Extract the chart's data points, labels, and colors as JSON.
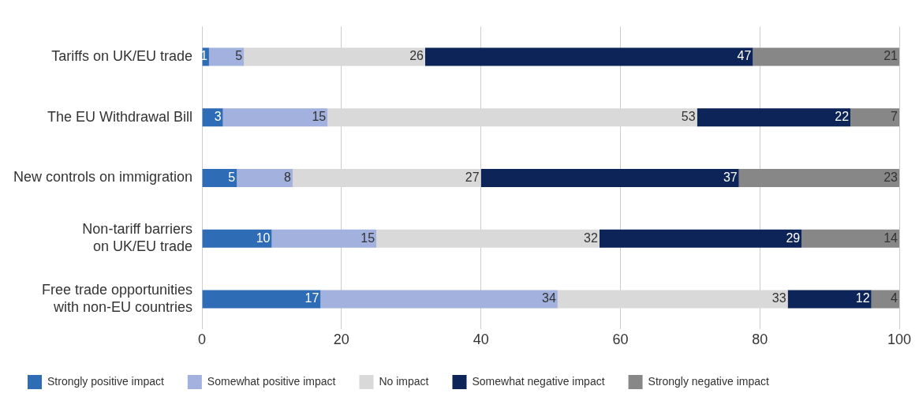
{
  "chart_data": {
    "type": "bar",
    "orientation": "horizontal",
    "stacked": true,
    "categories": [
      "Tariffs on UK/EU trade",
      "The EU Withdrawal Bill",
      "New controls on immigration",
      "Non-tariff barriers\non UK/EU trade",
      "Free trade opportunities\nwith non-EU countries"
    ],
    "series": [
      {
        "name": "Strongly positive impact",
        "color": "#2e6cb5",
        "values": [
          1,
          3,
          5,
          10,
          17
        ]
      },
      {
        "name": "Somewhat positive impact",
        "color": "#a2b1dd",
        "values": [
          5,
          15,
          8,
          15,
          34
        ]
      },
      {
        "name": "No impact",
        "color": "#d9d9d9",
        "values": [
          26,
          53,
          27,
          32,
          33
        ]
      },
      {
        "name": "Somewhat negative impact",
        "color": "#0c2457",
        "values": [
          47,
          22,
          37,
          29,
          12
        ]
      },
      {
        "name": "Strongly negative impact",
        "color": "#878787",
        "values": [
          21,
          7,
          23,
          14,
          4
        ]
      }
    ],
    "xlim": [
      0,
      100
    ],
    "xticks": [
      0,
      20,
      40,
      60,
      80,
      100
    ],
    "grid": "x",
    "legend": "bottom",
    "data_labels": true
  }
}
